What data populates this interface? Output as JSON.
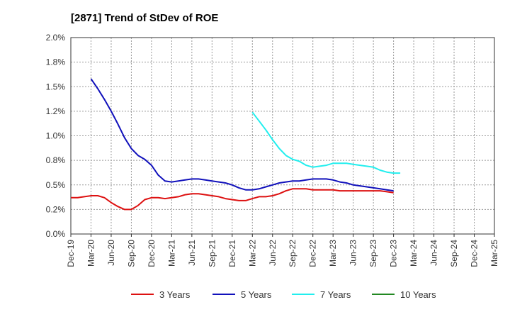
{
  "chart_data": {
    "type": "line",
    "title": "[2871]  Trend of StDev of ROE",
    "xlabel": "",
    "ylabel": "",
    "x_ticks": [
      "Dec-19",
      "Mar-20",
      "Jun-20",
      "Sep-20",
      "Dec-20",
      "Mar-21",
      "Jun-21",
      "Sep-21",
      "Dec-21",
      "Mar-22",
      "Jun-22",
      "Sep-22",
      "Dec-22",
      "Mar-23",
      "Jun-23",
      "Sep-23",
      "Dec-23",
      "Mar-24",
      "Jun-24",
      "Sep-24",
      "Dec-24",
      "Mar-25"
    ],
    "y_ticks": [
      "0.0%",
      "0.2%",
      "0.5%",
      "0.8%",
      "1.0%",
      "1.2%",
      "1.5%",
      "1.8%",
      "2.0%"
    ],
    "ylim": [
      0,
      2.0
    ],
    "grid": true,
    "legend_position": "bottom",
    "series": [
      {
        "name": "3 Years",
        "color": "#dd1111",
        "values": [
          [
            0,
            0.37
          ],
          [
            1,
            0.37
          ],
          [
            2,
            0.38
          ],
          [
            3,
            0.39
          ],
          [
            4,
            0.39
          ],
          [
            5,
            0.37
          ],
          [
            6,
            0.32
          ],
          [
            7,
            0.28
          ],
          [
            8,
            0.25
          ],
          [
            9,
            0.25
          ],
          [
            10,
            0.29
          ],
          [
            11,
            0.35
          ],
          [
            12,
            0.37
          ],
          [
            13,
            0.37
          ],
          [
            14,
            0.36
          ],
          [
            15,
            0.37
          ],
          [
            16,
            0.38
          ],
          [
            17,
            0.4
          ],
          [
            18,
            0.41
          ],
          [
            19,
            0.41
          ],
          [
            20,
            0.4
          ],
          [
            21,
            0.39
          ],
          [
            22,
            0.38
          ],
          [
            23,
            0.36
          ],
          [
            24,
            0.35
          ],
          [
            25,
            0.34
          ],
          [
            26,
            0.34
          ],
          [
            27,
            0.36
          ],
          [
            28,
            0.38
          ],
          [
            29,
            0.38
          ],
          [
            30,
            0.39
          ],
          [
            31,
            0.41
          ],
          [
            32,
            0.44
          ],
          [
            33,
            0.46
          ],
          [
            34,
            0.46
          ],
          [
            35,
            0.46
          ],
          [
            36,
            0.45
          ],
          [
            37,
            0.45
          ],
          [
            38,
            0.45
          ],
          [
            39,
            0.45
          ],
          [
            40,
            0.44
          ],
          [
            41,
            0.44
          ],
          [
            42,
            0.44
          ],
          [
            43,
            0.44
          ],
          [
            44,
            0.44
          ],
          [
            45,
            0.44
          ],
          [
            46,
            0.44
          ],
          [
            47,
            0.43
          ],
          [
            48,
            0.42
          ]
        ]
      },
      {
        "name": "5 Years",
        "color": "#1111bb",
        "values": [
          [
            3,
            1.58
          ],
          [
            4,
            1.48
          ],
          [
            5,
            1.37
          ],
          [
            6,
            1.25
          ],
          [
            7,
            1.12
          ],
          [
            8,
            0.98
          ],
          [
            9,
            0.87
          ],
          [
            10,
            0.8
          ],
          [
            11,
            0.76
          ],
          [
            12,
            0.7
          ],
          [
            13,
            0.6
          ],
          [
            14,
            0.54
          ],
          [
            15,
            0.53
          ],
          [
            16,
            0.54
          ],
          [
            17,
            0.55
          ],
          [
            18,
            0.56
          ],
          [
            19,
            0.56
          ],
          [
            20,
            0.55
          ],
          [
            21,
            0.54
          ],
          [
            22,
            0.53
          ],
          [
            23,
            0.52
          ],
          [
            24,
            0.5
          ],
          [
            25,
            0.47
          ],
          [
            26,
            0.45
          ],
          [
            27,
            0.45
          ],
          [
            28,
            0.46
          ],
          [
            29,
            0.48
          ],
          [
            30,
            0.5
          ],
          [
            31,
            0.52
          ],
          [
            32,
            0.53
          ],
          [
            33,
            0.54
          ],
          [
            34,
            0.54
          ],
          [
            35,
            0.55
          ],
          [
            36,
            0.56
          ],
          [
            37,
            0.56
          ],
          [
            38,
            0.56
          ],
          [
            39,
            0.55
          ],
          [
            40,
            0.53
          ],
          [
            41,
            0.52
          ],
          [
            42,
            0.5
          ],
          [
            43,
            0.49
          ],
          [
            44,
            0.48
          ],
          [
            45,
            0.47
          ],
          [
            46,
            0.46
          ],
          [
            47,
            0.45
          ],
          [
            48,
            0.44
          ]
        ]
      },
      {
        "name": "7 Years",
        "color": "#22eeee",
        "values": [
          [
            27,
            1.24
          ],
          [
            28,
            1.15
          ],
          [
            29,
            1.06
          ],
          [
            30,
            0.96
          ],
          [
            31,
            0.87
          ],
          [
            32,
            0.8
          ],
          [
            33,
            0.76
          ],
          [
            34,
            0.74
          ],
          [
            35,
            0.7
          ],
          [
            36,
            0.68
          ],
          [
            37,
            0.69
          ],
          [
            38,
            0.7
          ],
          [
            39,
            0.72
          ],
          [
            40,
            0.72
          ],
          [
            41,
            0.72
          ],
          [
            42,
            0.71
          ],
          [
            43,
            0.7
          ],
          [
            44,
            0.69
          ],
          [
            45,
            0.68
          ],
          [
            46,
            0.65
          ],
          [
            47,
            0.63
          ],
          [
            48,
            0.62
          ],
          [
            49,
            0.62
          ]
        ]
      },
      {
        "name": "10 Years",
        "color": "#228822",
        "values": []
      }
    ]
  }
}
